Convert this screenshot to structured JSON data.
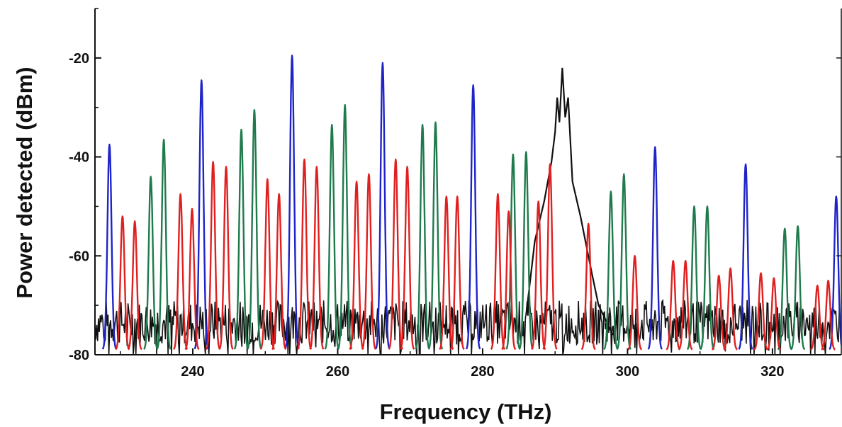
{
  "chart_data": {
    "type": "line",
    "title": "",
    "xlabel": "Frequency (THz)",
    "ylabel": "Power detected (dBm)",
    "xlim": [
      226.5,
      329.5
    ],
    "ylim": [
      -80,
      -10
    ],
    "x_ticks": [
      240,
      260,
      280,
      300,
      320
    ],
    "y_ticks": [
      -20,
      -40,
      -60,
      -80
    ],
    "grid": false,
    "legend": "none",
    "noise_floor_dbm": -73,
    "pump": {
      "x": 291,
      "peak_dbm": -22
    },
    "pump_pedestal": [
      [
        286.0,
        -72
      ],
      [
        287.2,
        -57
      ],
      [
        288.5,
        -49
      ],
      [
        289.5,
        -41
      ],
      [
        290.0,
        -35
      ],
      [
        290.3,
        -28
      ],
      [
        290.6,
        -33
      ],
      [
        291.0,
        -22
      ],
      [
        291.4,
        -32
      ],
      [
        291.8,
        -28
      ],
      [
        292.4,
        -45
      ],
      [
        293.5,
        -52
      ],
      [
        295.0,
        -63
      ],
      [
        296.0,
        -70
      ],
      [
        298.0,
        -76
      ]
    ],
    "series": [
      {
        "color": "#1f24c8",
        "peaks": [
          [
            228.5,
            -37.5
          ],
          [
            241.2,
            -24.5
          ],
          [
            253.7,
            -19.5
          ],
          [
            266.2,
            -21
          ],
          [
            278.7,
            -25.5
          ],
          [
            303.8,
            -38
          ],
          [
            316.3,
            -41.5
          ],
          [
            328.8,
            -48
          ]
        ]
      },
      {
        "color": "#1f7a4c",
        "peaks": [
          [
            234.2,
            -44
          ],
          [
            236.0,
            -36.5
          ],
          [
            246.7,
            -34.5
          ],
          [
            248.5,
            -30.5
          ],
          [
            259.2,
            -33.5
          ],
          [
            261.0,
            -29.5
          ],
          [
            271.7,
            -33.5
          ],
          [
            273.5,
            -33
          ],
          [
            284.2,
            -39.5
          ],
          [
            286.0,
            -39
          ],
          [
            297.7,
            -47
          ],
          [
            299.5,
            -43.5
          ],
          [
            309.2,
            -50
          ],
          [
            311.0,
            -50
          ],
          [
            321.7,
            -54.5
          ],
          [
            323.5,
            -54
          ]
        ]
      },
      {
        "color": "#e02020",
        "peaks": [
          [
            230.3,
            -52
          ],
          [
            232.0,
            -53
          ],
          [
            238.3,
            -47.5
          ],
          [
            239.9,
            -50.5
          ],
          [
            242.8,
            -41
          ],
          [
            244.6,
            -42
          ],
          [
            250.3,
            -44.5
          ],
          [
            251.9,
            -47.5
          ],
          [
            255.4,
            -40.5
          ],
          [
            257.1,
            -42
          ],
          [
            262.6,
            -45
          ],
          [
            264.3,
            -43.5
          ],
          [
            268.0,
            -40.5
          ],
          [
            269.6,
            -42
          ],
          [
            275.0,
            -48
          ],
          [
            276.5,
            -48
          ],
          [
            282.1,
            -47.5
          ],
          [
            283.6,
            -51
          ],
          [
            287.7,
            -49
          ],
          [
            289.3,
            -41.5
          ],
          [
            294.6,
            -53.5
          ],
          [
            301.0,
            -60
          ],
          [
            306.3,
            -61
          ],
          [
            308.0,
            -61
          ],
          [
            312.6,
            -64
          ],
          [
            314.2,
            -62.5
          ],
          [
            318.4,
            -63.5
          ],
          [
            320.2,
            -64.5
          ],
          [
            326.2,
            -66
          ],
          [
            327.7,
            -65
          ]
        ]
      }
    ]
  }
}
